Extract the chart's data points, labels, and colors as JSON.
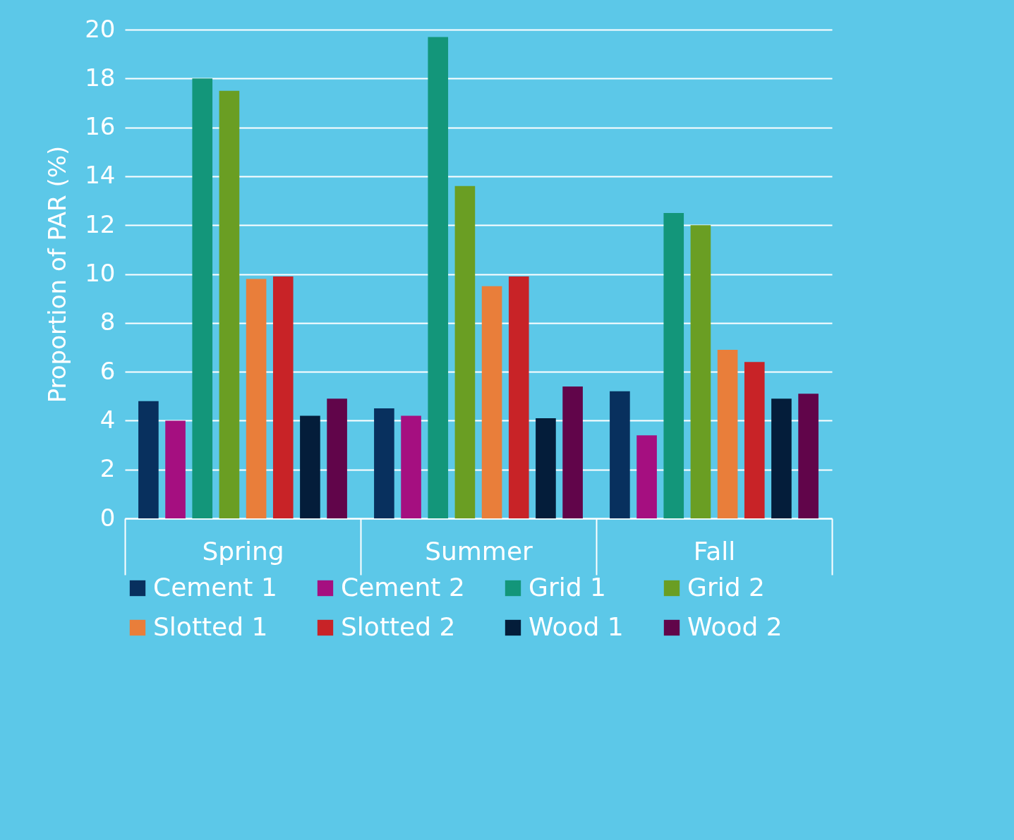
{
  "chart_data": {
    "type": "bar",
    "ylabel": "Proportion of PAR (%)",
    "categories": [
      "Spring",
      "Summer",
      "Fall"
    ],
    "series": [
      {
        "name": "Cement 1",
        "color": "#08305e",
        "values": [
          4.8,
          4.5,
          5.2
        ]
      },
      {
        "name": "Cement 2",
        "color": "#a50f80",
        "values": [
          4.0,
          4.2,
          3.4
        ]
      },
      {
        "name": "Grid 1",
        "color": "#13967a",
        "values": [
          18.0,
          19.7,
          12.5
        ]
      },
      {
        "name": "Grid 2",
        "color": "#6a9e23",
        "values": [
          17.5,
          13.6,
          12.0
        ]
      },
      {
        "name": "Slotted 1",
        "color": "#e97e3a",
        "values": [
          9.8,
          9.5,
          6.9
        ]
      },
      {
        "name": "Slotted 2",
        "color": "#c82327",
        "values": [
          9.9,
          9.9,
          6.4
        ]
      },
      {
        "name": "Wood 1",
        "color": "#041d3a",
        "values": [
          4.2,
          4.1,
          4.9
        ]
      },
      {
        "name": "Wood 2",
        "color": "#61054a",
        "values": [
          4.9,
          5.4,
          5.1
        ]
      }
    ],
    "ylim": [
      0,
      20
    ],
    "yticks": [
      0,
      2,
      4,
      6,
      8,
      10,
      12,
      14,
      16,
      18,
      20
    ],
    "grid": "y",
    "legend": "bottom"
  }
}
